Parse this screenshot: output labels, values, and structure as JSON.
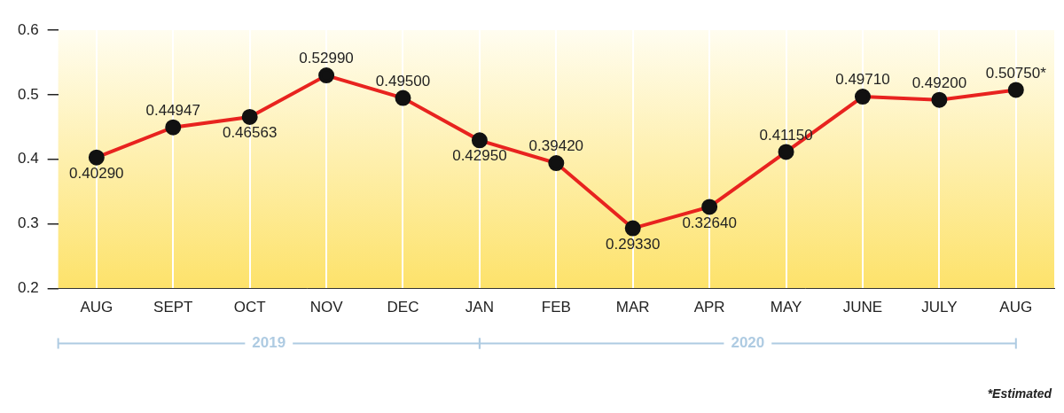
{
  "chart_data": {
    "type": "line",
    "categories": [
      "AUG",
      "SEPT",
      "OCT",
      "NOV",
      "DEC",
      "JAN",
      "FEB",
      "MAR",
      "APR",
      "MAY",
      "JUNE",
      "JULY",
      "AUG"
    ],
    "values": [
      0.4029,
      0.44947,
      0.46563,
      0.5299,
      0.495,
      0.4295,
      0.3942,
      0.2933,
      0.3264,
      0.4115,
      0.4971,
      0.492,
      0.5075
    ],
    "value_labels": [
      "0.40290",
      "0.44947",
      "0.46563",
      "0.52990",
      "0.49500",
      "0.42950",
      "0.39420",
      "0.29330",
      "0.32640",
      "0.41150",
      "0.49710",
      "0.49200",
      "0.50750*"
    ],
    "color": "#e8231f",
    "marker": "circle",
    "ylim": [
      0.2,
      0.6
    ],
    "yticks": [
      0.2,
      0.3,
      0.4,
      0.5,
      0.6
    ],
    "grid": true,
    "data_labels": true,
    "x_groups": [
      {
        "label": "2019",
        "from": 0,
        "to": 4
      },
      {
        "label": "2020",
        "from": 5,
        "to": 12
      }
    ],
    "annotations": [
      "*Estimated"
    ]
  }
}
